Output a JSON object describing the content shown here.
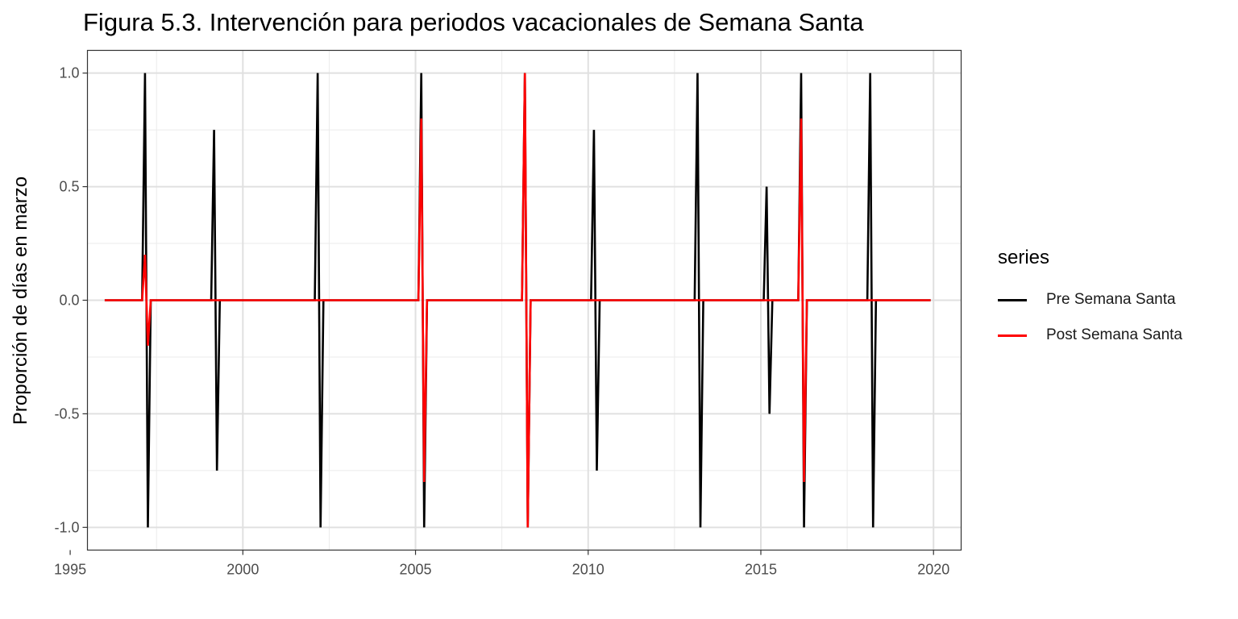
{
  "chart_data": {
    "type": "line",
    "title": "Figura 5.3. Intervención para periodos vacacionales de Semana Santa",
    "xlabel": "",
    "ylabel": "Proporción de días en marzo",
    "xlim": [
      1995.5,
      2020.8
    ],
    "ylim": [
      -1.1,
      1.1
    ],
    "xticks": [
      1995,
      2000,
      2005,
      2010,
      2015,
      2020
    ],
    "xtick_labels": [
      "1995",
      "2000",
      "2005",
      "2010",
      "2015",
      "2020"
    ],
    "yticks": [
      -1.0,
      -0.5,
      0.0,
      0.5,
      1.0
    ],
    "ytick_labels": [
      "-1.0",
      "-0.5",
      "0.0",
      "0.5",
      "1.0"
    ],
    "grid": true,
    "legend": {
      "title": "series",
      "position": "right"
    },
    "series": [
      {
        "name": "Pre Semana Santa",
        "color": "#000000",
        "points": [
          [
            1996.0,
            0
          ],
          [
            1997.0833,
            0
          ],
          [
            1997.1667,
            1.0
          ],
          [
            1997.25,
            -1.0
          ],
          [
            1997.3333,
            0
          ],
          [
            1999.0833,
            0
          ],
          [
            1999.1667,
            0.75
          ],
          [
            1999.25,
            -0.75
          ],
          [
            1999.3333,
            0
          ],
          [
            2002.0833,
            0
          ],
          [
            2002.1667,
            1.0
          ],
          [
            2002.25,
            -1.0
          ],
          [
            2002.3333,
            0
          ],
          [
            2005.0833,
            0
          ],
          [
            2005.1667,
            1.0
          ],
          [
            2005.25,
            -1.0
          ],
          [
            2005.3333,
            0
          ],
          [
            2008.0833,
            0
          ],
          [
            2008.1667,
            1.0
          ],
          [
            2008.25,
            -1.0
          ],
          [
            2008.3333,
            0
          ],
          [
            2010.0833,
            0
          ],
          [
            2010.1667,
            0.75
          ],
          [
            2010.25,
            -0.75
          ],
          [
            2010.3333,
            0
          ],
          [
            2013.0833,
            0
          ],
          [
            2013.1667,
            1.0
          ],
          [
            2013.25,
            -1.0
          ],
          [
            2013.3333,
            0
          ],
          [
            2015.0833,
            0
          ],
          [
            2015.1667,
            0.5
          ],
          [
            2015.25,
            -0.5
          ],
          [
            2015.3333,
            0
          ],
          [
            2016.0833,
            0
          ],
          [
            2016.1667,
            1.0
          ],
          [
            2016.25,
            -1.0
          ],
          [
            2016.3333,
            0
          ],
          [
            2018.0833,
            0
          ],
          [
            2018.1667,
            1.0
          ],
          [
            2018.25,
            -1.0
          ],
          [
            2018.3333,
            0
          ],
          [
            2019.9167,
            0
          ]
        ]
      },
      {
        "name": "Post Semana Santa",
        "color": "#ff0000",
        "points": [
          [
            1996.0,
            0
          ],
          [
            1997.0833,
            0
          ],
          [
            1997.1667,
            0.2
          ],
          [
            1997.25,
            -0.2
          ],
          [
            1997.3333,
            0
          ],
          [
            2005.0833,
            0
          ],
          [
            2005.1667,
            0.8
          ],
          [
            2005.25,
            -0.8
          ],
          [
            2005.3333,
            0
          ],
          [
            2008.0833,
            0
          ],
          [
            2008.1667,
            1.0
          ],
          [
            2008.25,
            -1.0
          ],
          [
            2008.3333,
            0
          ],
          [
            2016.0833,
            0
          ],
          [
            2016.1667,
            0.8
          ],
          [
            2016.25,
            -0.8
          ],
          [
            2016.3333,
            0
          ],
          [
            2019.9167,
            0
          ]
        ]
      }
    ]
  }
}
